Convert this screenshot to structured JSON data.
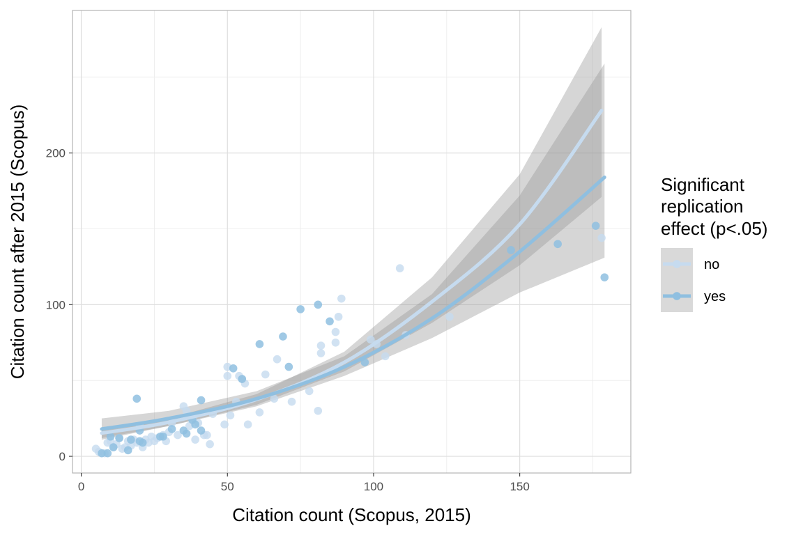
{
  "chart_data": {
    "type": "scatter",
    "xlabel": "Citation count (Scopus, 2015)",
    "ylabel": "Citation count after 2015 (Scopus)",
    "xlim": [
      -3,
      188
    ],
    "ylim": [
      -11,
      294
    ],
    "x_ticks": [
      0,
      50,
      100,
      150
    ],
    "y_ticks": [
      0,
      100,
      200
    ],
    "grid": true,
    "legend": {
      "title_lines": [
        "Significant",
        "replication",
        "effect (p<.05)"
      ],
      "placement": "right"
    },
    "series": [
      {
        "name": "no",
        "color": "#c6dbef",
        "points": [
          [
            5,
            5
          ],
          [
            6,
            3
          ],
          [
            8,
            2
          ],
          [
            9,
            9
          ],
          [
            10,
            10
          ],
          [
            11,
            6
          ],
          [
            12,
            8
          ],
          [
            13,
            12
          ],
          [
            14,
            5
          ],
          [
            15,
            6
          ],
          [
            16,
            10
          ],
          [
            17,
            7
          ],
          [
            18,
            11
          ],
          [
            19,
            9
          ],
          [
            20,
            20
          ],
          [
            21,
            6
          ],
          [
            22,
            11
          ],
          [
            23,
            9
          ],
          [
            24,
            13
          ],
          [
            25,
            10
          ],
          [
            26,
            12
          ],
          [
            28,
            14
          ],
          [
            29,
            10
          ],
          [
            30,
            16
          ],
          [
            31,
            22
          ],
          [
            33,
            14
          ],
          [
            35,
            33
          ],
          [
            36,
            30
          ],
          [
            37,
            20
          ],
          [
            38,
            25
          ],
          [
            39,
            11
          ],
          [
            40,
            22
          ],
          [
            42,
            14
          ],
          [
            43,
            14
          ],
          [
            44,
            8
          ],
          [
            45,
            28
          ],
          [
            49,
            21
          ],
          [
            50,
            53
          ],
          [
            50,
            59
          ],
          [
            51,
            27
          ],
          [
            53,
            36
          ],
          [
            54,
            53
          ],
          [
            55,
            51
          ],
          [
            56,
            48
          ],
          [
            57,
            21
          ],
          [
            61,
            29
          ],
          [
            63,
            54
          ],
          [
            66,
            38
          ],
          [
            67,
            64
          ],
          [
            72,
            36
          ],
          [
            78,
            43
          ],
          [
            81,
            30
          ],
          [
            82,
            68
          ],
          [
            82,
            73
          ],
          [
            87,
            75
          ],
          [
            87,
            82
          ],
          [
            88,
            92
          ],
          [
            89,
            104
          ],
          [
            99,
            77
          ],
          [
            101,
            74
          ],
          [
            104,
            66
          ],
          [
            109,
            124
          ],
          [
            111,
            80
          ],
          [
            126,
            92
          ],
          [
            178,
            144
          ]
        ],
        "fit": [
          [
            7,
            15.3
          ],
          [
            30,
            22.5
          ],
          [
            60,
            37.5
          ],
          [
            90,
            62
          ],
          [
            120,
            102
          ],
          [
            150,
            153
          ],
          [
            178,
            228
          ]
        ],
        "band": [
          [
            7,
            12,
            19
          ],
          [
            30,
            20,
            25
          ],
          [
            60,
            34,
            41
          ],
          [
            90,
            56,
            69
          ],
          [
            120,
            88,
            118
          ],
          [
            150,
            126,
            186
          ],
          [
            178,
            171,
            283
          ]
        ]
      },
      {
        "name": "yes",
        "color": "#8fbfe0",
        "points": [
          [
            7,
            2
          ],
          [
            9,
            2
          ],
          [
            10,
            13
          ],
          [
            11,
            6
          ],
          [
            13,
            12
          ],
          [
            16,
            4
          ],
          [
            17,
            11
          ],
          [
            19,
            38
          ],
          [
            20,
            17
          ],
          [
            20,
            10
          ],
          [
            21,
            9
          ],
          [
            27,
            13
          ],
          [
            28,
            13
          ],
          [
            31,
            18
          ],
          [
            35,
            17
          ],
          [
            36,
            15
          ],
          [
            38,
            24
          ],
          [
            39,
            21
          ],
          [
            41,
            37
          ],
          [
            41,
            17
          ],
          [
            52,
            58
          ],
          [
            55,
            51
          ],
          [
            61,
            74
          ],
          [
            69,
            79
          ],
          [
            71,
            59
          ],
          [
            75,
            97
          ],
          [
            81,
            100
          ],
          [
            85,
            89
          ],
          [
            97,
            62
          ],
          [
            147,
            136
          ],
          [
            163,
            140
          ],
          [
            176,
            152
          ],
          [
            179,
            118
          ]
        ],
        "fit": [
          [
            7,
            18
          ],
          [
            30,
            25
          ],
          [
            60,
            38
          ],
          [
            90,
            59
          ],
          [
            120,
            91
          ],
          [
            150,
            135
          ],
          [
            179,
            184
          ]
        ],
        "band": [
          [
            7,
            11,
            25
          ],
          [
            30,
            20,
            30
          ],
          [
            60,
            33,
            43
          ],
          [
            90,
            53,
            66
          ],
          [
            120,
            78,
            107
          ],
          [
            150,
            108,
            172
          ],
          [
            179,
            131,
            259
          ]
        ]
      }
    ]
  }
}
